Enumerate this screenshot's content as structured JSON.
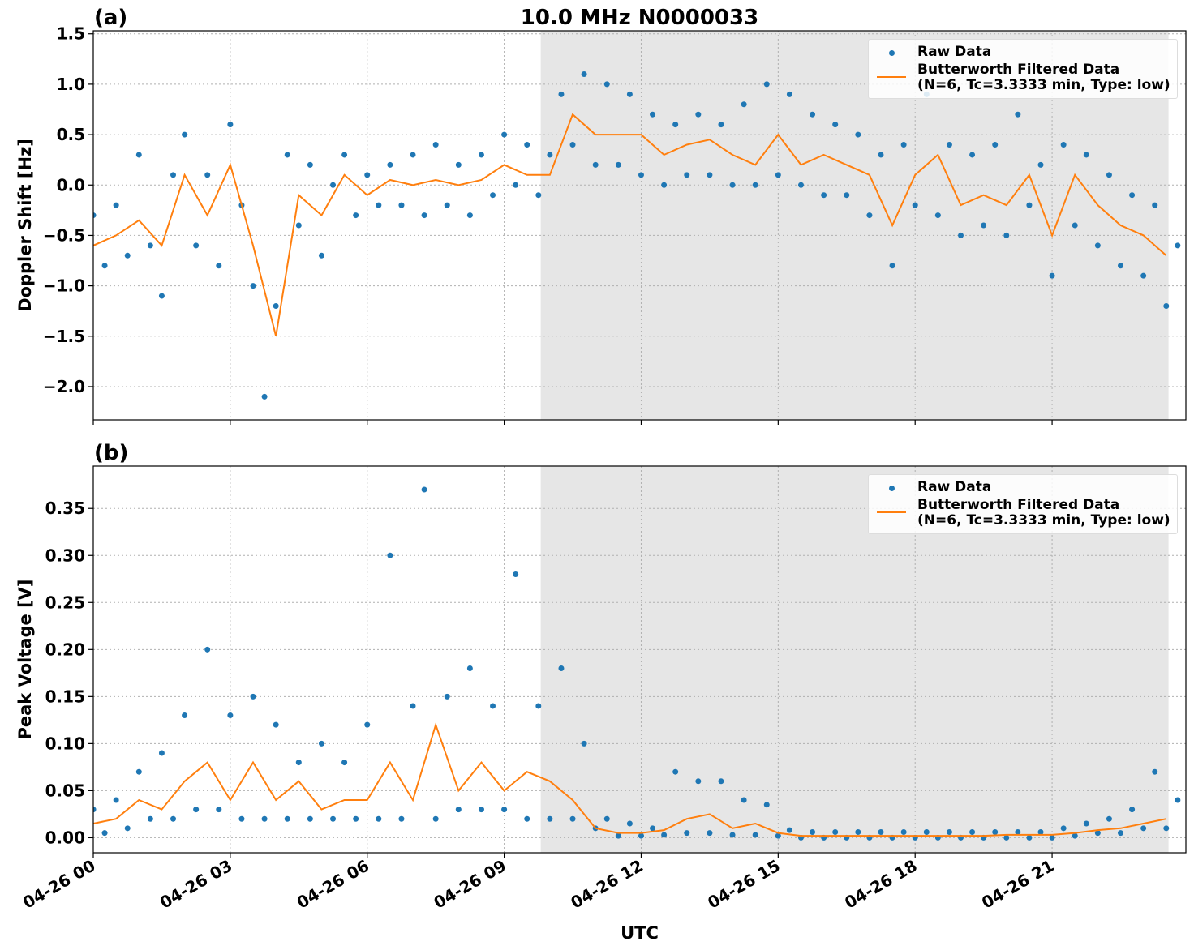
{
  "chart_data": [
    {
      "type": "scatter-line",
      "title": "10.0 MHz N0000033",
      "panel_label": "(a)",
      "ylabel": "Doppler Shift [Hz]",
      "xlim": [
        0,
        23.93
      ],
      "ylim": [
        -2.33,
        1.53
      ],
      "xticks": [
        0,
        3,
        6,
        9,
        12,
        15,
        18,
        21
      ],
      "yticks": [
        {
          "value": -2,
          "label": "−2.0"
        },
        {
          "value": -1.5,
          "label": "−1.5"
        },
        {
          "value": -1,
          "label": "−1.0"
        },
        {
          "value": -0.5,
          "label": "−0.5"
        },
        {
          "value": 0,
          "label": "0.0"
        },
        0.5,
        {
          "value": 1,
          "label": "1.0"
        },
        1.5
      ],
      "grid": true,
      "legend": "upper right",
      "shade": {
        "xmin": 9.8,
        "xmax": 23.55,
        "color": "#e6e6e6"
      },
      "series": [
        {
          "name": "Raw Data",
          "color": "#1f77b4",
          "style": "markers",
          "x": [
            0,
            0.25,
            0.5,
            0.75,
            1,
            1.25,
            1.5,
            1.75,
            2,
            2.25,
            2.5,
            2.75,
            3,
            3.25,
            3.5,
            3.75,
            4,
            4.25,
            4.5,
            4.75,
            5,
            5.25,
            5.5,
            5.75,
            6,
            6.25,
            6.5,
            6.75,
            7,
            7.25,
            7.5,
            7.75,
            8,
            8.25,
            8.5,
            8.75,
            9,
            9.25,
            9.5,
            9.75,
            10,
            10.25,
            10.5,
            10.75,
            11,
            11.25,
            11.5,
            11.75,
            12,
            12.25,
            12.5,
            12.75,
            13,
            13.25,
            13.5,
            13.75,
            14,
            14.25,
            14.5,
            14.75,
            15,
            15.25,
            15.5,
            15.75,
            16,
            16.25,
            16.5,
            16.75,
            17,
            17.25,
            17.5,
            17.75,
            18,
            18.25,
            18.5,
            18.75,
            19,
            19.25,
            19.5,
            19.75,
            20,
            20.25,
            20.5,
            20.75,
            21,
            21.25,
            21.5,
            21.75,
            22,
            22.25,
            22.5,
            22.75,
            23,
            23.25,
            23.5,
            23.75
          ],
          "values": [
            -0.3,
            -0.8,
            -0.2,
            -0.7,
            0.3,
            -0.6,
            -1.1,
            0.1,
            0.5,
            -0.6,
            0.1,
            -0.8,
            0.6,
            -0.2,
            -1.0,
            -2.1,
            -1.2,
            0.3,
            -0.4,
            0.2,
            -0.7,
            0.0,
            0.3,
            -0.3,
            0.1,
            -0.2,
            0.2,
            -0.2,
            0.3,
            -0.3,
            0.4,
            -0.2,
            0.2,
            -0.3,
            0.3,
            -0.1,
            0.5,
            0.0,
            0.4,
            -0.1,
            0.3,
            0.9,
            0.4,
            1.1,
            0.2,
            1.0,
            0.2,
            0.9,
            0.1,
            0.7,
            0.0,
            0.6,
            0.1,
            0.7,
            0.1,
            0.6,
            0.0,
            0.8,
            0.0,
            1.0,
            0.1,
            0.9,
            0.0,
            0.7,
            -0.1,
            0.6,
            -0.1,
            0.5,
            -0.3,
            0.3,
            -0.8,
            0.4,
            -0.2,
            0.9,
            -0.3,
            0.4,
            -0.5,
            0.3,
            -0.4,
            0.4,
            -0.5,
            0.7,
            -0.2,
            0.2,
            -0.9,
            0.4,
            -0.4,
            0.3,
            -0.6,
            0.1,
            -0.8,
            -0.1,
            -0.9,
            -0.2,
            -1.2,
            -0.6
          ]
        },
        {
          "name": "Butterworth Filtered Data\n(N=6, Tc=3.3333 min, Type: low)",
          "color": "#ff7f0e",
          "style": "line",
          "x": [
            0,
            0.5,
            1,
            1.5,
            2,
            2.5,
            3,
            3.5,
            4,
            4.5,
            5,
            5.5,
            6,
            6.5,
            7,
            7.5,
            8,
            8.5,
            9,
            9.5,
            10,
            10.5,
            11,
            11.5,
            12,
            12.5,
            13,
            13.5,
            14,
            14.5,
            15,
            15.5,
            16,
            16.5,
            17,
            17.5,
            18,
            18.5,
            19,
            19.5,
            20,
            20.5,
            21,
            21.5,
            22,
            22.5,
            23,
            23.5
          ],
          "values": [
            -0.6,
            -0.5,
            -0.35,
            -0.6,
            0.1,
            -0.3,
            0.2,
            -0.6,
            -1.5,
            -0.1,
            -0.3,
            0.1,
            -0.1,
            0.05,
            0.0,
            0.05,
            0.0,
            0.05,
            0.2,
            0.1,
            0.1,
            0.7,
            0.5,
            0.5,
            0.5,
            0.3,
            0.4,
            0.45,
            0.3,
            0.2,
            0.5,
            0.2,
            0.3,
            0.2,
            0.1,
            -0.4,
            0.1,
            0.3,
            -0.2,
            -0.1,
            -0.2,
            0.1,
            -0.5,
            0.1,
            -0.2,
            -0.4,
            -0.5,
            -0.7
          ]
        }
      ]
    },
    {
      "type": "scatter-line",
      "panel_label": "(b)",
      "ylabel": "Peak Voltage [V]",
      "xlabel": "UTC",
      "xlim": [
        0,
        23.93
      ],
      "ylim": [
        -0.016,
        0.395
      ],
      "xticks": [
        {
          "value": 0,
          "label": "04-26 00"
        },
        {
          "value": 3,
          "label": "04-26 03"
        },
        {
          "value": 6,
          "label": "04-26 06"
        },
        {
          "value": 9,
          "label": "04-26 09"
        },
        {
          "value": 12,
          "label": "04-26 12"
        },
        {
          "value": 15,
          "label": "04-26 15"
        },
        {
          "value": 18,
          "label": "04-26 18"
        },
        {
          "value": 21,
          "label": "04-26 21"
        }
      ],
      "yticks": [
        {
          "value": 0,
          "label": "0.00"
        },
        0.05,
        {
          "value": 0.1,
          "label": "0.10"
        },
        0.15,
        {
          "value": 0.2,
          "label": "0.20"
        },
        0.25,
        {
          "value": 0.3,
          "label": "0.30"
        },
        0.35
      ],
      "grid": true,
      "legend": "upper right",
      "shade": {
        "xmin": 9.8,
        "xmax": 23.55,
        "color": "#e6e6e6"
      },
      "series": [
        {
          "name": "Raw Data",
          "color": "#1f77b4",
          "style": "markers",
          "x": [
            0,
            0.25,
            0.5,
            0.75,
            1,
            1.25,
            1.5,
            1.75,
            2,
            2.25,
            2.5,
            2.75,
            3,
            3.25,
            3.5,
            3.75,
            4,
            4.25,
            4.5,
            4.75,
            5,
            5.25,
            5.5,
            5.75,
            6,
            6.25,
            6.5,
            6.75,
            7,
            7.25,
            7.5,
            7.75,
            8,
            8.25,
            8.5,
            8.75,
            9,
            9.25,
            9.5,
            9.75,
            10,
            10.25,
            10.5,
            10.75,
            11,
            11.25,
            11.5,
            11.75,
            12,
            12.25,
            12.5,
            12.75,
            13,
            13.25,
            13.5,
            13.75,
            14,
            14.25,
            14.5,
            14.75,
            15,
            15.25,
            15.5,
            15.75,
            16,
            16.25,
            16.5,
            16.75,
            17,
            17.25,
            17.5,
            17.75,
            18,
            18.25,
            18.5,
            18.75,
            19,
            19.25,
            19.5,
            19.75,
            20,
            20.25,
            20.5,
            20.75,
            21,
            21.25,
            21.5,
            21.75,
            22,
            22.25,
            22.5,
            22.75,
            23,
            23.25,
            23.5,
            23.75
          ],
          "values": [
            0.03,
            0.005,
            0.04,
            0.01,
            0.07,
            0.02,
            0.09,
            0.02,
            0.13,
            0.03,
            0.2,
            0.03,
            0.13,
            0.02,
            0.15,
            0.02,
            0.12,
            0.02,
            0.08,
            0.02,
            0.1,
            0.02,
            0.08,
            0.02,
            0.12,
            0.02,
            0.3,
            0.02,
            0.14,
            0.37,
            0.02,
            0.15,
            0.03,
            0.18,
            0.03,
            0.14,
            0.03,
            0.28,
            0.02,
            0.14,
            0.02,
            0.18,
            0.02,
            0.1,
            0.01,
            0.02,
            0.002,
            0.015,
            0.002,
            0.01,
            0.003,
            0.07,
            0.005,
            0.06,
            0.005,
            0.06,
            0.003,
            0.04,
            0.003,
            0.035,
            0.002,
            0.008,
            0.0,
            0.006,
            0.0,
            0.006,
            0.0,
            0.006,
            0.0,
            0.006,
            0.0,
            0.006,
            0.0,
            0.006,
            0.0,
            0.006,
            0.0,
            0.006,
            0.0,
            0.006,
            0.0,
            0.006,
            0.0,
            0.006,
            0.0,
            0.01,
            0.002,
            0.015,
            0.005,
            0.02,
            0.005,
            0.03,
            0.01,
            0.07,
            0.01,
            0.04
          ]
        },
        {
          "name": "Butterworth Filtered Data\n(N=6, Tc=3.3333 min, Type: low)",
          "color": "#ff7f0e",
          "style": "line",
          "x": [
            0,
            0.5,
            1,
            1.5,
            2,
            2.5,
            3,
            3.5,
            4,
            4.5,
            5,
            5.5,
            6,
            6.5,
            7,
            7.5,
            8,
            8.5,
            9,
            9.5,
            10,
            10.5,
            11,
            11.5,
            12,
            12.5,
            13,
            13.5,
            14,
            14.5,
            15,
            15.5,
            16,
            16.5,
            17,
            17.5,
            18,
            18.5,
            19,
            19.5,
            20,
            20.5,
            21,
            21.5,
            22,
            22.5,
            23,
            23.5
          ],
          "values": [
            0.015,
            0.02,
            0.04,
            0.03,
            0.06,
            0.08,
            0.04,
            0.08,
            0.04,
            0.06,
            0.03,
            0.04,
            0.04,
            0.08,
            0.04,
            0.12,
            0.05,
            0.08,
            0.05,
            0.07,
            0.06,
            0.04,
            0.01,
            0.005,
            0.005,
            0.008,
            0.02,
            0.025,
            0.01,
            0.015,
            0.005,
            0.002,
            0.002,
            0.002,
            0.002,
            0.002,
            0.002,
            0.002,
            0.002,
            0.002,
            0.003,
            0.003,
            0.003,
            0.005,
            0.008,
            0.01,
            0.015,
            0.02
          ]
        }
      ]
    }
  ]
}
